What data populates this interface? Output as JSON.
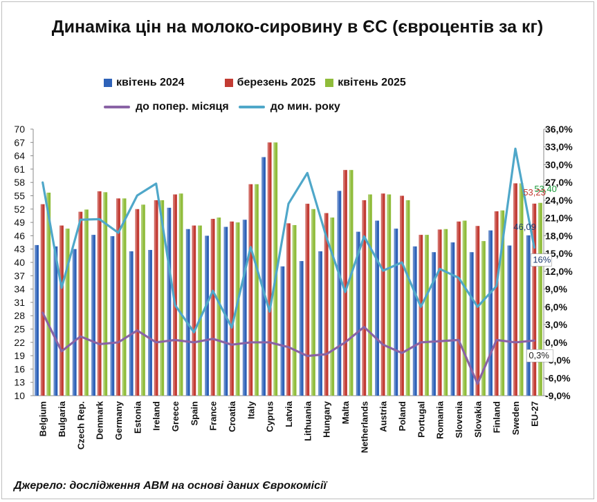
{
  "title": "Динаміка цін на молоко-сировину в ЄС (євроцентів за кг)",
  "source": "Джерело: дослідження АВМ на основі даних Єврокомісії",
  "colors": {
    "apr2024": "#2e62b8",
    "mar2025": "#c23b33",
    "apr2025": "#8fbc3a",
    "mom": "#8a63a5",
    "yoy": "#4fa7c9"
  },
  "chart_data": {
    "type": "bar",
    "categories": [
      "Belgium",
      "Bulgaria",
      "Czech Rep.",
      "Denmark",
      "Germany",
      "Estonia",
      "Ireland",
      "Greece",
      "Spain",
      "France",
      "Croatia",
      "Italy",
      "Cyprus",
      "Latvia",
      "Lithuania",
      "Hungary",
      "Malta",
      "Netherlands",
      "Austria",
      "Poland",
      "Portugal",
      "Romania",
      "Slovenia",
      "Slovakia",
      "Finland",
      "Sweden",
      "EU-27"
    ],
    "series": [
      {
        "name": "квітень 2024",
        "axis": "left",
        "kind": "bar",
        "color": "#2e62b8",
        "values": [
          43.9,
          43.6,
          43.0,
          46.2,
          45.9,
          42.5,
          42.8,
          52.3,
          47.5,
          46.0,
          48.0,
          49.6,
          63.7,
          39.1,
          40.3,
          42.5,
          56.1,
          46.9,
          49.4,
          47.6,
          43.6,
          42.3,
          44.5,
          42.3,
          47.2,
          43.8,
          46.09
        ]
      },
      {
        "name": "березень 2025",
        "axis": "left",
        "kind": "bar",
        "color": "#c23b33",
        "values": [
          53.1,
          48.3,
          51.4,
          56.0,
          54.4,
          52.0,
          54.0,
          55.3,
          48.3,
          49.8,
          49.2,
          57.6,
          67.0,
          48.8,
          53.2,
          51.1,
          60.8,
          54.0,
          55.5,
          55.0,
          46.2,
          47.4,
          49.2,
          48.2,
          51.5,
          57.8,
          53.23
        ]
      },
      {
        "name": "квітень 2025",
        "axis": "left",
        "kind": "bar",
        "color": "#8fbc3a",
        "values": [
          55.7,
          47.6,
          51.9,
          55.8,
          54.4,
          53.0,
          54.0,
          55.5,
          48.3,
          50.1,
          49.0,
          57.6,
          67.0,
          48.4,
          52.0,
          50.1,
          60.8,
          55.3,
          55.3,
          54.0,
          46.2,
          47.5,
          49.4,
          44.8,
          51.7,
          57.8,
          53.4
        ]
      },
      {
        "name": "до попер. місяця",
        "axis": "right",
        "kind": "line",
        "color": "#8a63a5",
        "values": [
          5.0,
          -1.5,
          1.0,
          -0.3,
          0.0,
          2.0,
          0.0,
          0.4,
          0.0,
          0.6,
          -0.4,
          0.0,
          0.0,
          -0.8,
          -2.3,
          -2.0,
          0.0,
          2.6,
          -0.4,
          -1.8,
          0.0,
          0.2,
          0.4,
          -7.0,
          0.4,
          0.0,
          0.3
        ]
      },
      {
        "name": "до мин. року",
        "axis": "right",
        "kind": "line",
        "color": "#4fa7c9",
        "values": [
          27.0,
          9.2,
          20.7,
          20.8,
          18.5,
          24.8,
          26.8,
          6.3,
          1.7,
          8.7,
          2.5,
          16.1,
          5.2,
          23.4,
          28.6,
          17.8,
          8.5,
          17.9,
          12.1,
          13.5,
          6.0,
          12.4,
          10.9,
          6.0,
          9.5,
          32.7,
          16.0
        ]
      }
    ],
    "y_left": {
      "min": 10,
      "max": 70,
      "ticks": [
        10,
        13,
        16,
        19,
        22,
        25,
        28,
        31,
        34,
        37,
        40,
        43,
        46,
        49,
        52,
        55,
        58,
        61,
        64,
        67,
        70
      ],
      "tick_labels": [
        "10",
        "13",
        "16",
        "19",
        "22",
        "25",
        "28",
        "31",
        "34",
        "37",
        "40",
        "43",
        "46",
        "49",
        "52",
        "55",
        "58",
        "61",
        "64",
        "67",
        "70"
      ]
    },
    "y_right": {
      "min": -9,
      "max": 36,
      "ticks": [
        -9,
        -6,
        -3,
        0,
        3,
        6,
        9,
        12,
        15,
        18,
        21,
        24,
        27,
        30,
        33,
        36
      ],
      "tick_labels": [
        "-9,0%",
        "-6,0%",
        "-3,0%",
        "0,0%",
        "3,0%",
        "6,0%",
        "9,0%",
        "12,0%",
        "15,0%",
        "18,0%",
        "21,0%",
        "24,0%",
        "27,0%",
        "30,0%",
        "33,0%",
        "36,0%"
      ]
    },
    "grid": false,
    "legend": "top",
    "annotations": [
      {
        "text": "53,40",
        "color": "#1a9b3a",
        "series": "квітень 2025",
        "category": "EU-27"
      },
      {
        "text": "53,23",
        "color": "#c23b33",
        "series": "березень 2025",
        "category": "EU-27"
      },
      {
        "text": "46,09",
        "color": "#1f3b70",
        "series": "квітень 2024",
        "category": "EU-27"
      },
      {
        "text": "16%",
        "color": "#1f3b70",
        "series": "до мин. року",
        "category": "EU-27"
      },
      {
        "text": "0,3%",
        "color": "#222222",
        "series": "до попер. місяця",
        "category": "EU-27"
      }
    ]
  }
}
